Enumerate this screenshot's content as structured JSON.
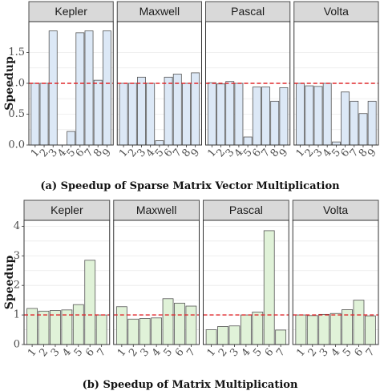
{
  "chart_data": [
    {
      "type": "bar",
      "caption": "(a) Speedup of Sparse Matrix Vector Multiplication",
      "ylabel": "Speedup",
      "ylim": [
        0,
        2.0
      ],
      "yticks": [
        0.0,
        0.5,
        1.0,
        1.5
      ],
      "ytick_labels": [
        "0.0",
        "0.5",
        "1.0",
        "1.5"
      ],
      "reference_line": 1.0,
      "reference_color": "#e0282c",
      "bar_fill": "#dce8f6",
      "bar_stroke": "#555555",
      "grid": true,
      "categories": [
        "1",
        "2",
        "3",
        "4",
        "5",
        "6",
        "7",
        "8",
        "9"
      ],
      "panels": [
        {
          "name": "Kepler",
          "values": [
            1.0,
            1.0,
            1.85,
            0.0,
            0.22,
            1.82,
            1.85,
            1.05,
            1.85
          ]
        },
        {
          "name": "Maxwell",
          "values": [
            1.0,
            1.0,
            1.1,
            1.0,
            0.07,
            1.1,
            1.15,
            1.0,
            1.17
          ]
        },
        {
          "name": "Pascal",
          "values": [
            1.01,
            0.99,
            1.03,
            1.0,
            0.13,
            0.94,
            0.94,
            0.71,
            0.93
          ]
        },
        {
          "name": "Volta",
          "values": [
            1.0,
            0.96,
            0.95,
            1.0,
            0.05,
            0.86,
            0.71,
            0.51,
            0.71
          ]
        }
      ]
    },
    {
      "type": "bar",
      "caption": "(b) Speedup of Matrix Multiplication",
      "ylabel": "Speedup",
      "ylim": [
        0,
        4.2
      ],
      "yticks": [
        0,
        1,
        2,
        3,
        4
      ],
      "ytick_labels": [
        "0",
        "1",
        "2",
        "3",
        "4"
      ],
      "reference_line": 1.0,
      "reference_color": "#e0282c",
      "bar_fill": "#e0f2d8",
      "bar_stroke": "#555555",
      "grid": true,
      "categories": [
        "1",
        "2",
        "3",
        "4",
        "5",
        "6",
        "7"
      ],
      "panels": [
        {
          "name": "Kepler",
          "values": [
            1.22,
            1.13,
            1.15,
            1.17,
            1.35,
            2.85,
            1.0
          ]
        },
        {
          "name": "Maxwell",
          "values": [
            1.28,
            0.86,
            0.88,
            0.9,
            1.55,
            1.4,
            1.3
          ]
        },
        {
          "name": "Pascal",
          "values": [
            0.5,
            0.61,
            0.63,
            1.0,
            1.1,
            3.85,
            0.49
          ]
        },
        {
          "name": "Volta",
          "values": [
            1.0,
            0.98,
            1.02,
            1.05,
            1.18,
            1.5,
            0.97
          ]
        }
      ]
    }
  ]
}
